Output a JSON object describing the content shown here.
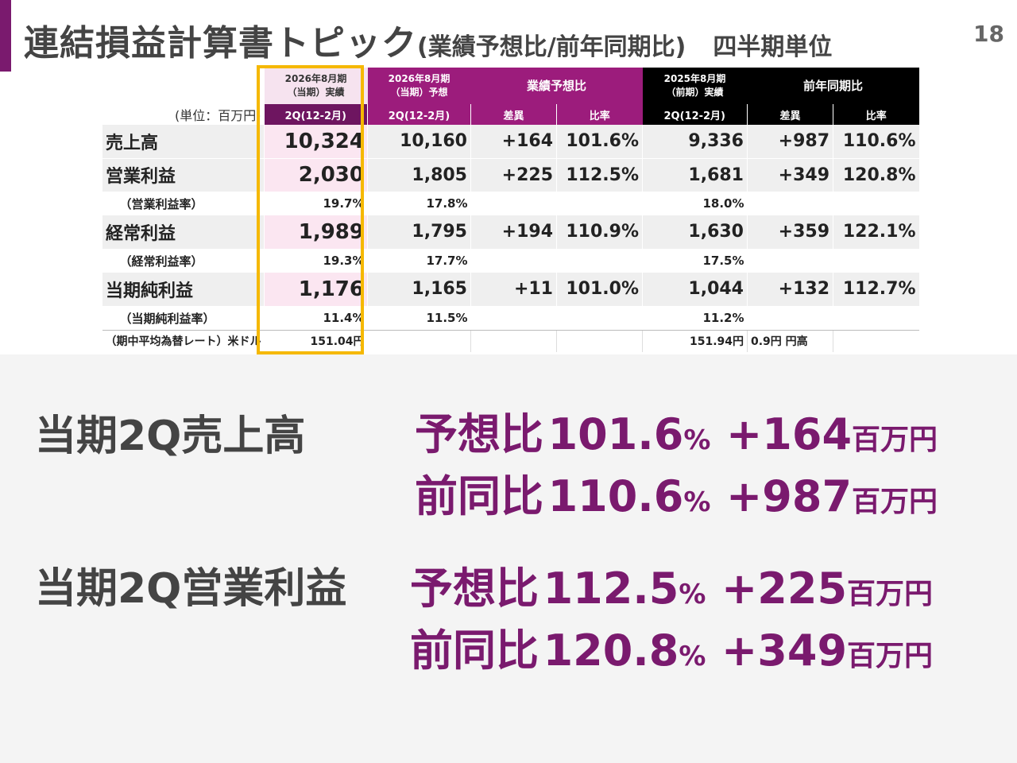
{
  "header": {
    "title_main": "連結損益計算書トピック",
    "title_sub": "(業績予想比/前年同期比)",
    "title_unit": "四半期単位",
    "page_number": "18",
    "accent_color": "#7a1a6e"
  },
  "table": {
    "unit_label": "(単位：百万円)",
    "col_headers": {
      "actual_line1": "2026年8月期",
      "actual_line2": "（当期）実績",
      "forecast_line1": "2026年8月期",
      "forecast_line2": "（当期）予想",
      "vs_forecast": "業績予想比",
      "prior_line1": "2025年8月期",
      "prior_line2": "（前期）実績",
      "vs_prior": "前年同期比"
    },
    "sub_headers": {
      "actual_period": "2Q(12-2月)",
      "forecast_period": "2Q(12-2月)",
      "diff1": "差異",
      "ratio1": "比率",
      "prior_period": "2Q(12-2月)",
      "diff2": "差異",
      "ratio2": "比率"
    },
    "rows": [
      {
        "label": "売上高",
        "actual": "10,324",
        "forecast": "10,160",
        "diff1": "+164",
        "ratio1": "101.6%",
        "prior": "9,336",
        "diff2": "+987",
        "ratio2": "110.6%"
      },
      {
        "label": "営業利益",
        "actual": "2,030",
        "forecast": "1,805",
        "diff1": "+225",
        "ratio1": "112.5%",
        "prior": "1,681",
        "diff2": "+349",
        "ratio2": "120.8%"
      },
      {
        "label": "（営業利益率）",
        "actual": "19.7%",
        "forecast": "17.8%",
        "prior": "18.0%"
      },
      {
        "label": "経常利益",
        "actual": "1,989",
        "forecast": "1,795",
        "diff1": "+194",
        "ratio1": "110.9%",
        "prior": "1,630",
        "diff2": "+359",
        "ratio2": "122.1%"
      },
      {
        "label": "（経常利益率）",
        "actual": "19.3%",
        "forecast": "17.7%",
        "prior": "17.5%"
      },
      {
        "label": "当期純利益",
        "actual": "1,176",
        "forecast": "1,165",
        "diff1": "+11",
        "ratio1": "101.0%",
        "prior": "1,044",
        "diff2": "+132",
        "ratio2": "112.7%"
      },
      {
        "label": "（当期純利益率）",
        "actual": "11.4%",
        "forecast": "11.5%",
        "prior": "11.2%"
      },
      {
        "label": "（期中平均為替レート）米ドル",
        "actual": "151.04円",
        "prior": "151.94円",
        "diff2": "0.9円 円高"
      }
    ]
  },
  "summary": {
    "sales": {
      "label": "当期2Q売上高",
      "forecast_prefix": "予想比",
      "forecast_ratio": "101.6",
      "forecast_diff": "+164",
      "prior_prefix": "前同比",
      "prior_ratio": "110.6",
      "prior_diff": "+987"
    },
    "op_income": {
      "label": "当期2Q営業利益",
      "forecast_prefix": "予想比",
      "forecast_ratio": "112.5",
      "forecast_diff": "+225",
      "prior_prefix": "前同比",
      "prior_ratio": "120.8",
      "prior_diff": "+349"
    },
    "pct_sign": "%",
    "yen_unit": "百万円"
  }
}
